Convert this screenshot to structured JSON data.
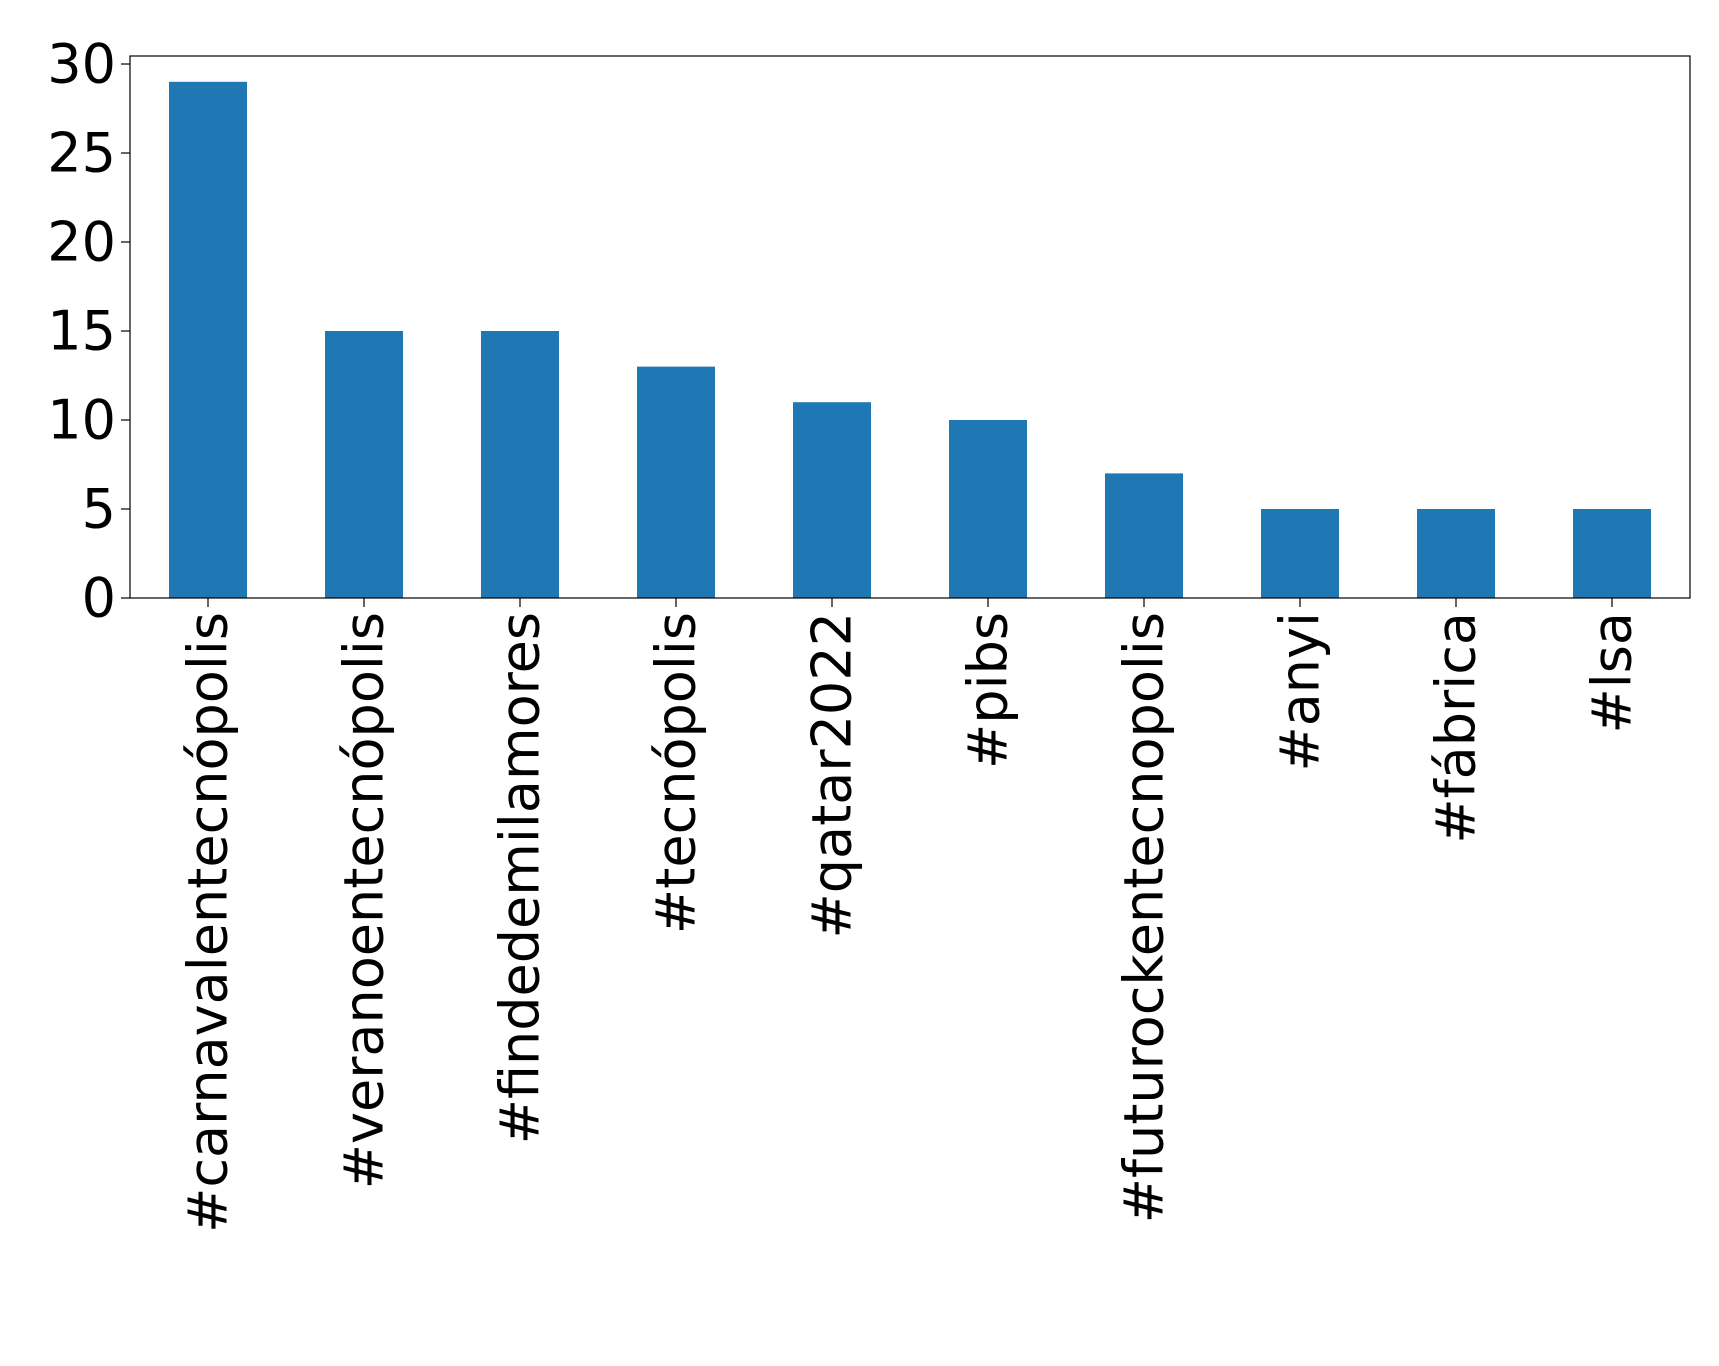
{
  "chart_data": {
    "type": "bar",
    "title": "",
    "xlabel": "",
    "ylabel": "",
    "categories": [
      "#carnavalentecnópolis",
      "#veranoentecnópolis",
      "#findedemilamores",
      "#tecnópolis",
      "#qatar2022",
      "#pibs",
      "#futurockentecnopolis",
      "#anyi",
      "#fábrica",
      "#lsa"
    ],
    "values": [
      29,
      15,
      15,
      13,
      11,
      10,
      7,
      5,
      5,
      5
    ],
    "ylim": [
      0,
      30.45
    ],
    "yticks": [
      0,
      5,
      10,
      15,
      20,
      25,
      30
    ],
    "ytick_labels": [
      "0",
      "5",
      "10",
      "15",
      "20",
      "25",
      "30"
    ],
    "grid": false,
    "legend": "none",
    "bar_color": "#1f77b4"
  }
}
